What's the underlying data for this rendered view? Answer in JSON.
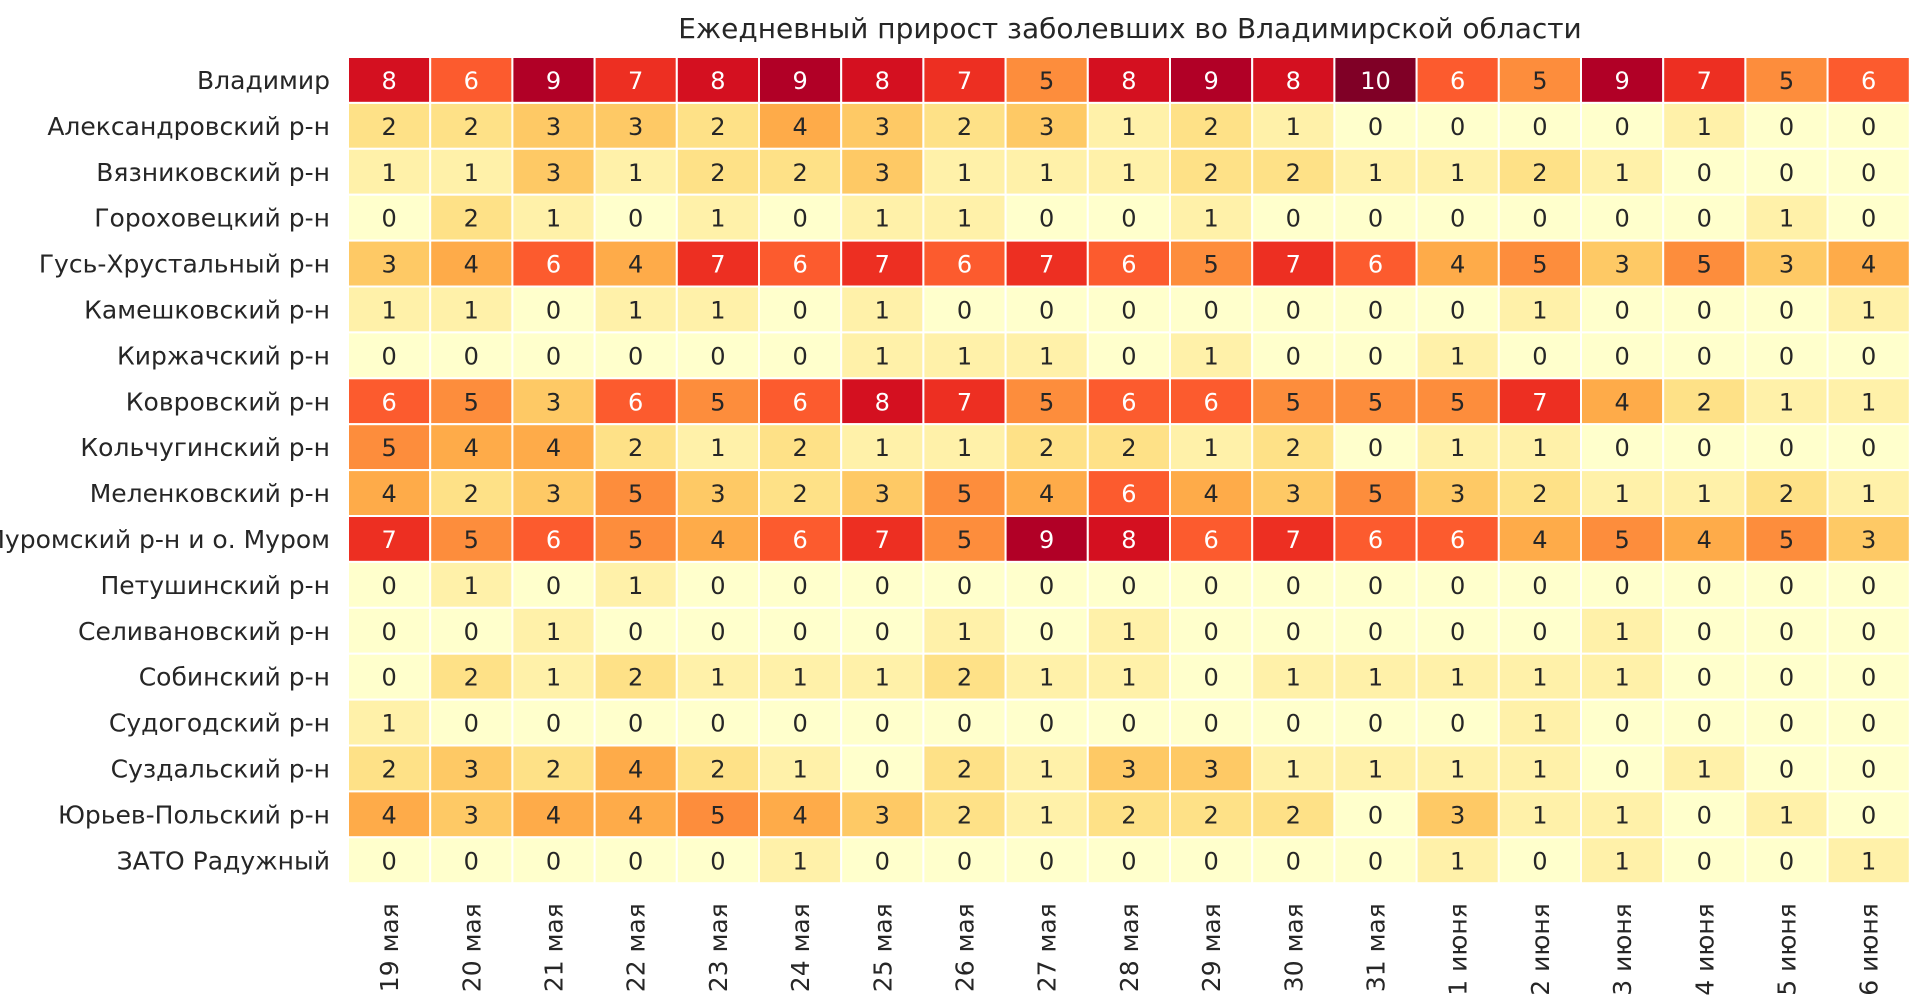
{
  "chart_data": {
    "type": "heatmap",
    "title": "Ежедневный прирост заболевших во Владимирской области",
    "columns": [
      "19 мая",
      "20 мая",
      "21 мая",
      "22 мая",
      "23 мая",
      "24 мая",
      "25 мая",
      "26 мая",
      "27 мая",
      "28 мая",
      "29 мая",
      "30 мая",
      "31 мая",
      "1 июня",
      "2 июня",
      "3 июня",
      "4 июня",
      "5 июня",
      "6 июня"
    ],
    "rows": [
      {
        "name": "Владимир",
        "values": [
          8,
          6,
          9,
          7,
          8,
          9,
          8,
          7,
          5,
          8,
          9,
          8,
          10,
          6,
          5,
          9,
          7,
          5,
          6
        ]
      },
      {
        "name": "Александровский р-н",
        "values": [
          2,
          2,
          3,
          3,
          2,
          4,
          3,
          2,
          3,
          1,
          2,
          1,
          0,
          0,
          0,
          0,
          1,
          0,
          0
        ]
      },
      {
        "name": "Вязниковский р-н",
        "values": [
          1,
          1,
          3,
          1,
          2,
          2,
          3,
          1,
          1,
          1,
          2,
          2,
          1,
          1,
          2,
          1,
          0,
          0,
          0
        ]
      },
      {
        "name": "Гороховецкий р-н",
        "values": [
          0,
          2,
          1,
          0,
          1,
          0,
          1,
          1,
          0,
          0,
          1,
          0,
          0,
          0,
          0,
          0,
          0,
          1,
          0
        ]
      },
      {
        "name": "Гусь-Хрустальный р-н",
        "values": [
          3,
          4,
          6,
          4,
          7,
          6,
          7,
          6,
          7,
          6,
          5,
          7,
          6,
          4,
          5,
          3,
          5,
          3,
          4
        ]
      },
      {
        "name": "Камешковский р-н",
        "values": [
          1,
          1,
          0,
          1,
          1,
          0,
          1,
          0,
          0,
          0,
          0,
          0,
          0,
          0,
          1,
          0,
          0,
          0,
          1
        ]
      },
      {
        "name": "Киржачский р-н",
        "values": [
          0,
          0,
          0,
          0,
          0,
          0,
          1,
          1,
          1,
          0,
          1,
          0,
          0,
          1,
          0,
          0,
          0,
          0,
          0
        ]
      },
      {
        "name": "Ковровский р-н",
        "values": [
          6,
          5,
          3,
          6,
          5,
          6,
          8,
          7,
          5,
          6,
          6,
          5,
          5,
          5,
          7,
          4,
          2,
          1,
          1
        ]
      },
      {
        "name": "Кольчугинский р-н",
        "values": [
          5,
          4,
          4,
          2,
          1,
          2,
          1,
          1,
          2,
          2,
          1,
          2,
          0,
          1,
          1,
          0,
          0,
          0,
          0
        ]
      },
      {
        "name": "Меленковский р-н",
        "values": [
          4,
          2,
          3,
          5,
          3,
          2,
          3,
          5,
          4,
          6,
          4,
          3,
          5,
          3,
          2,
          1,
          1,
          2,
          1
        ]
      },
      {
        "name": "Муромский р-н и о. Муром",
        "values": [
          7,
          5,
          6,
          5,
          4,
          6,
          7,
          5,
          9,
          8,
          6,
          7,
          6,
          6,
          4,
          5,
          4,
          5,
          3
        ]
      },
      {
        "name": "Петушинский р-н",
        "values": [
          0,
          1,
          0,
          1,
          0,
          0,
          0,
          0,
          0,
          0,
          0,
          0,
          0,
          0,
          0,
          0,
          0,
          0,
          0
        ]
      },
      {
        "name": "Селивановский р-н",
        "values": [
          0,
          0,
          1,
          0,
          0,
          0,
          0,
          1,
          0,
          1,
          0,
          0,
          0,
          0,
          0,
          1,
          0,
          0,
          0
        ]
      },
      {
        "name": "Собинский р-н",
        "values": [
          0,
          2,
          1,
          2,
          1,
          1,
          1,
          2,
          1,
          1,
          0,
          1,
          1,
          1,
          1,
          1,
          0,
          0,
          0
        ]
      },
      {
        "name": "Судогодский р-н",
        "values": [
          1,
          0,
          0,
          0,
          0,
          0,
          0,
          0,
          0,
          0,
          0,
          0,
          0,
          0,
          1,
          0,
          0,
          0,
          0
        ]
      },
      {
        "name": "Суздальский р-н",
        "values": [
          2,
          3,
          2,
          4,
          2,
          1,
          0,
          2,
          1,
          3,
          3,
          1,
          1,
          1,
          1,
          0,
          1,
          0,
          0
        ]
      },
      {
        "name": "Юрьев-Польский р-н",
        "values": [
          4,
          3,
          4,
          4,
          5,
          4,
          3,
          2,
          1,
          2,
          2,
          2,
          0,
          3,
          1,
          1,
          0,
          1,
          0
        ]
      },
      {
        "name": "ЗАТО Радужный",
        "values": [
          0,
          0,
          0,
          0,
          0,
          1,
          0,
          0,
          0,
          0,
          0,
          0,
          0,
          1,
          0,
          1,
          0,
          0,
          1
        ]
      }
    ],
    "value_range": [
      0,
      10
    ],
    "colormap": "YlOrRd",
    "annotations": true
  }
}
